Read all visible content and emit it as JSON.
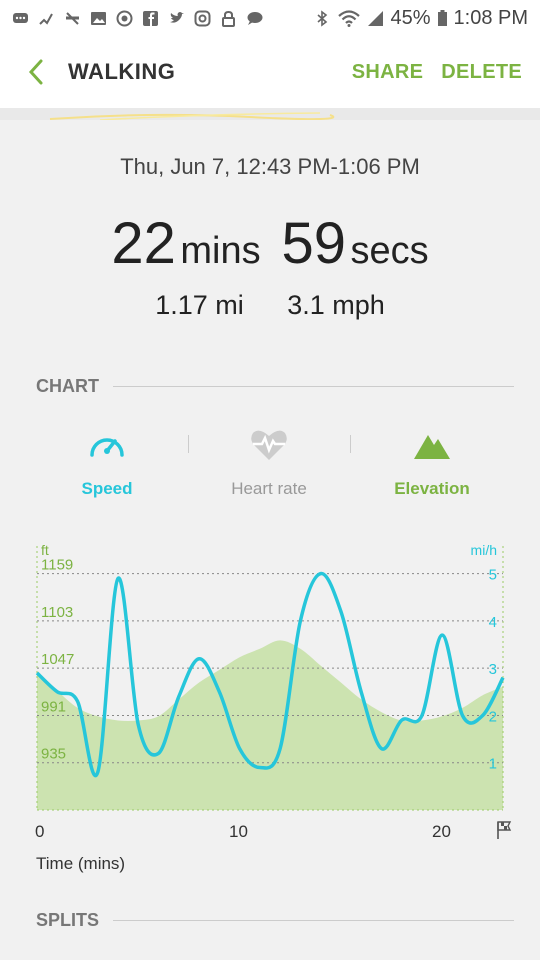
{
  "status": {
    "battery": "45%",
    "time": "1:08 PM"
  },
  "app_bar": {
    "title": "WALKING",
    "share": "SHARE",
    "delete": "DELETE"
  },
  "workout": {
    "date_range": "Thu, Jun 7, 12:43 PM-1:06 PM",
    "mins_value": "22",
    "mins_unit": "mins",
    "secs_value": "59",
    "secs_unit": "secs",
    "distance": "1.17 mi",
    "speed": "3.1 mph"
  },
  "sections": {
    "chart": "CHART",
    "splits": "SPLITS"
  },
  "tabs": [
    {
      "label": "Speed",
      "icon": "speedometer-icon",
      "color": "#26c6da"
    },
    {
      "label": "Heart rate",
      "icon": "heart-rate-icon",
      "color": "#999999"
    },
    {
      "label": "Elevation",
      "icon": "mountain-icon",
      "color": "#7cb342"
    }
  ],
  "chart_data": {
    "type": "area",
    "left_axis": {
      "unit": "ft",
      "ticks": [
        "1159",
        "1103",
        "1047",
        "991",
        "935"
      ],
      "range": [
        879,
        1187
      ]
    },
    "right_axis": {
      "unit": "mi/h",
      "ticks": [
        "5",
        "4",
        "3",
        "2",
        "1"
      ],
      "range": [
        0,
        5.5
      ]
    },
    "x_axis": {
      "label": "Time (mins)",
      "ticks": [
        "0",
        "10",
        "20"
      ],
      "range": [
        0,
        23
      ]
    },
    "series": [
      {
        "kind": "elevation",
        "axis": "left",
        "color": "#c5e1a5",
        "x": [
          0,
          1,
          2,
          3,
          4,
          5,
          6,
          7,
          8,
          9,
          10,
          11,
          12,
          13,
          14,
          15,
          16,
          17,
          18,
          19,
          20,
          21,
          22,
          23
        ],
        "y": [
          1040,
          1020,
          1000,
          990,
          985,
          985,
          990,
          1010,
          1030,
          1045,
          1060,
          1070,
          1080,
          1070,
          1050,
          1030,
          1010,
          995,
          985,
          985,
          990,
          1000,
          1015,
          1025
        ]
      },
      {
        "kind": "speed",
        "axis": "right",
        "color": "#26c6da",
        "x": [
          0,
          1,
          2,
          3,
          4,
          5,
          6,
          7,
          8,
          9,
          10,
          11,
          12,
          13,
          14,
          15,
          16,
          17,
          18,
          19,
          20,
          21,
          22,
          23
        ],
        "y": [
          2.9,
          2.5,
          2.3,
          0.8,
          4.9,
          1.8,
          1.2,
          2.4,
          3.2,
          2.5,
          1.3,
          0.9,
          1.3,
          4.0,
          5.0,
          4.2,
          2.5,
          1.3,
          1.9,
          2.0,
          3.7,
          2.0,
          2.0,
          2.8
        ]
      }
    ]
  }
}
